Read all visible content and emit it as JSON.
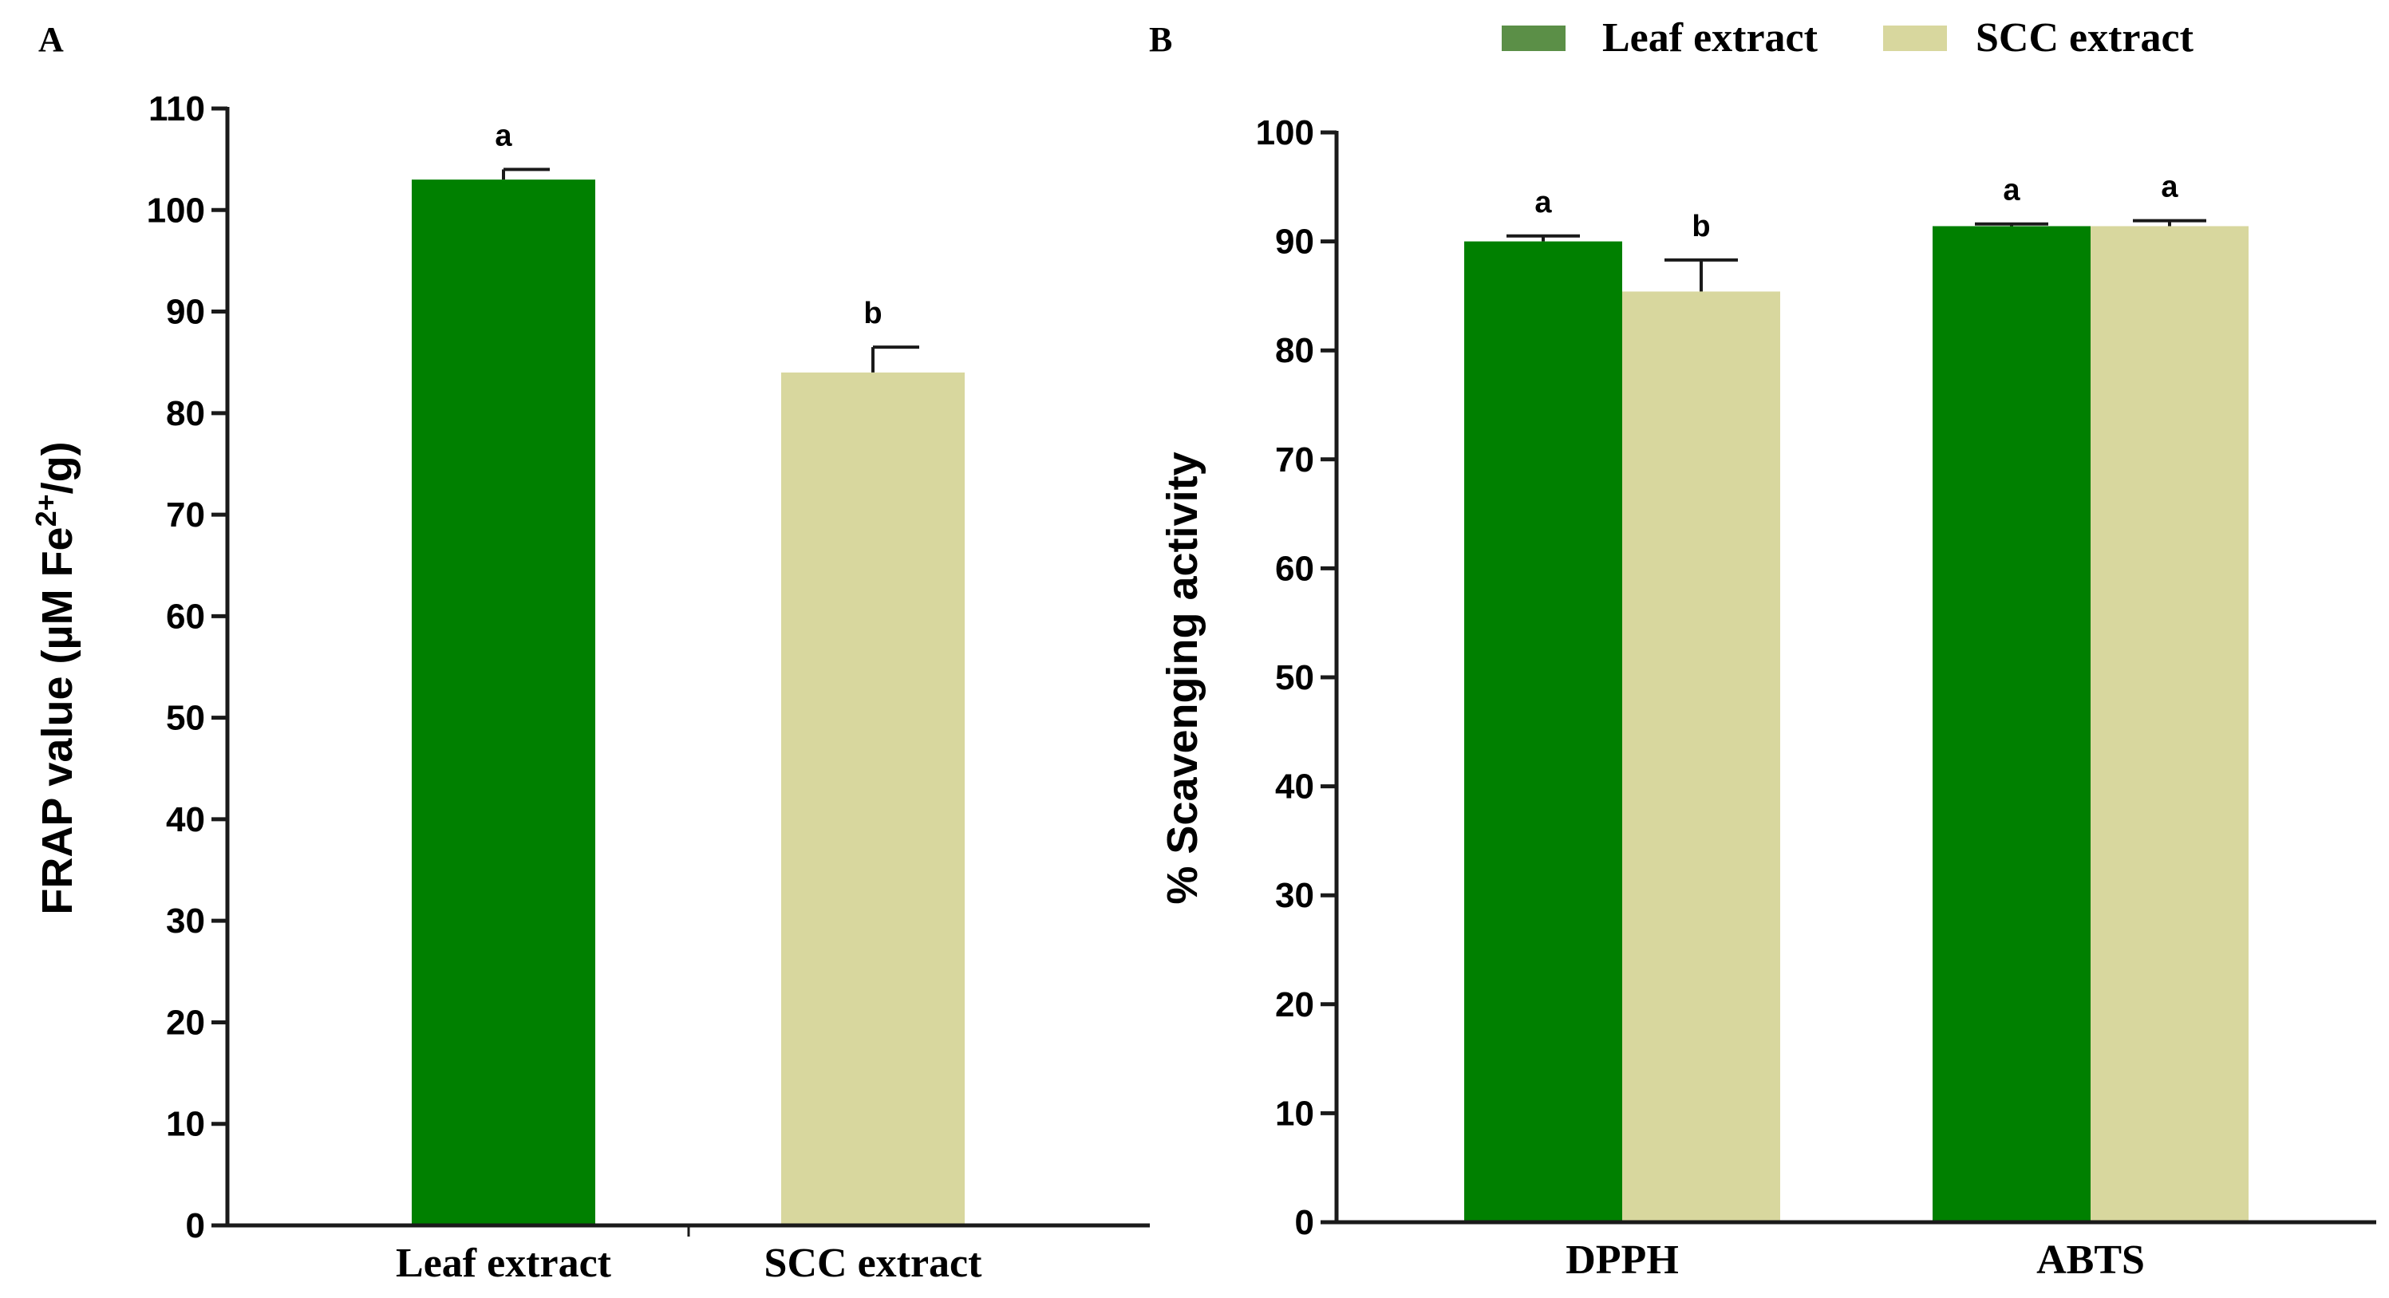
{
  "colors": {
    "leaf": "#008000",
    "scc": "#d8d79e",
    "legend_leaf": "#5b8f47",
    "axis": "#1a1a1a"
  },
  "chart_data": [
    {
      "panel": "A",
      "type": "bar",
      "categories": [
        "Leaf extract",
        "SCC extract"
      ],
      "values": [
        103,
        84
      ],
      "errors": [
        1,
        2.5
      ],
      "significance": [
        "a",
        "b"
      ],
      "ylabel_prefix": "FRAP value (µM Fe",
      "ylabel_sup": "2+",
      "ylabel_suffix": "/g)",
      "ylim": [
        0,
        110
      ],
      "yticks": [
        "0",
        "10",
        "20",
        "30",
        "40",
        "50",
        "60",
        "70",
        "80",
        "90",
        "100",
        "110"
      ]
    },
    {
      "panel": "B",
      "type": "bar",
      "categories": [
        "DPPH",
        "ABTS"
      ],
      "series": [
        {
          "name": "Leaf extract",
          "values": [
            90,
            91.4
          ],
          "errors": [
            0.5,
            0.2
          ],
          "significance": [
            "a",
            "a"
          ]
        },
        {
          "name": "SCC extract",
          "values": [
            85.4,
            91.4
          ],
          "errors": [
            2.9,
            0.5
          ],
          "significance": [
            "b",
            "a"
          ]
        }
      ],
      "ylabel": "% Scavenging activity",
      "ylim": [
        0,
        100
      ],
      "yticks": [
        "0",
        "10",
        "20",
        "30",
        "40",
        "50",
        "60",
        "70",
        "80",
        "90",
        "100"
      ],
      "legend": {
        "position": "top",
        "entries": [
          "Leaf extract",
          "SCC extract"
        ]
      }
    }
  ]
}
